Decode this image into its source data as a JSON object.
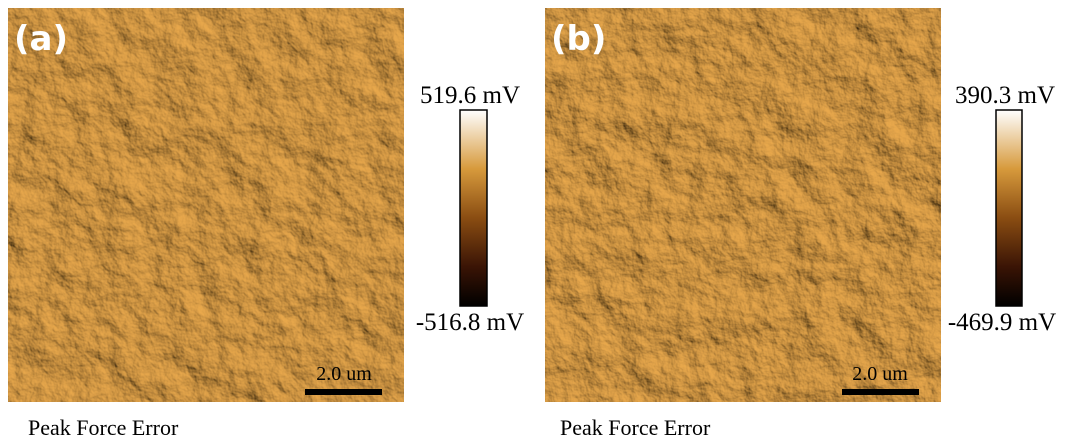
{
  "panels": [
    {
      "label": "(a)",
      "colorbar_max": "519.6 mV",
      "colorbar_min": "-516.8 mV",
      "scale_bar": "2.0 um",
      "caption": "Peak Force Error"
    },
    {
      "label": "(b)",
      "colorbar_max": "390.3 mV",
      "colorbar_min": "-469.9 mV",
      "scale_bar": "2.0 um",
      "caption": "Peak Force Error"
    }
  ]
}
